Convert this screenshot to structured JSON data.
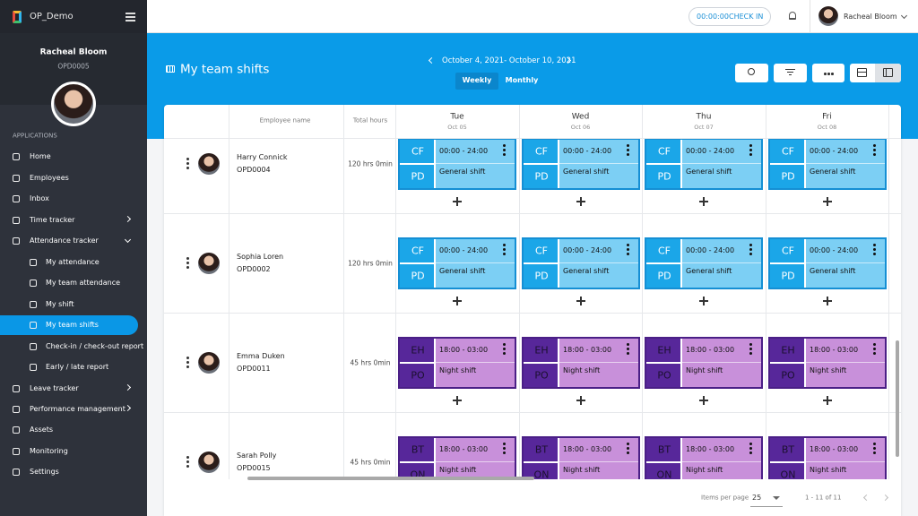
{
  "app": {
    "name": "OP_Demo"
  },
  "profile": {
    "name": "Racheal Bloom",
    "id": "OPD0005"
  },
  "sidebar": {
    "section": "APPLICATIONS",
    "items": [
      {
        "label": "Home"
      },
      {
        "label": "Employees"
      },
      {
        "label": "Inbox"
      },
      {
        "label": "Time tracker"
      },
      {
        "label": "Attendance tracker"
      },
      {
        "label": "My attendance"
      },
      {
        "label": "My team attendance"
      },
      {
        "label": "My shift"
      },
      {
        "label": "My team shifts"
      },
      {
        "label": "Check-in / check-out report"
      },
      {
        "label": "Early / late report"
      },
      {
        "label": "Leave tracker"
      },
      {
        "label": "Performance management"
      },
      {
        "label": "Assets"
      },
      {
        "label": "Monitoring"
      },
      {
        "label": "Settings"
      }
    ]
  },
  "topbar": {
    "timer": "00:00:00",
    "check_in": "CHECK IN",
    "user": "Racheal Bloom"
  },
  "header": {
    "title": "My team shifts",
    "date_range": "October 4, 2021- October 10, 2021",
    "tabs": [
      "Weekly",
      "Monthly"
    ]
  },
  "table": {
    "columns": {
      "employee": "Employee name",
      "total": "Total hours",
      "days": [
        {
          "day": "Tue",
          "date": "Oct 05"
        },
        {
          "day": "Wed",
          "date": "Oct 06"
        },
        {
          "day": "Thu",
          "date": "Oct 07"
        },
        {
          "day": "Fri",
          "date": "Oct 08"
        }
      ]
    },
    "rows": [
      {
        "name": "Harry Connick",
        "id": "OPD0004",
        "hours": "120 hrs 0min",
        "card_color": "#7ccff4",
        "code_color": "#1ba6e8",
        "border_color": "#158fd4",
        "code_text_color": "#ffffff",
        "shifts": [
          {
            "code": "CF",
            "code2": "PD",
            "time": "00:00 - 24:00",
            "label": "General shift"
          },
          {
            "code": "CF",
            "code2": "PD",
            "time": "00:00 - 24:00",
            "label": "General shift"
          },
          {
            "code": "CF",
            "code2": "PD",
            "time": "00:00 - 24:00",
            "label": "General shift"
          },
          {
            "code": "CF",
            "code2": "PD",
            "time": "00:00 - 24:00",
            "label": "General shift"
          }
        ]
      },
      {
        "name": "Sophia Loren",
        "id": "OPD0002",
        "hours": "120 hrs 0min",
        "card_color": "#7ccff4",
        "code_color": "#1ba6e8",
        "border_color": "#158fd4",
        "code_text_color": "#ffffff",
        "shifts": [
          {
            "code": "CF",
            "code2": "PD",
            "time": "00:00 - 24:00",
            "label": "General shift"
          },
          {
            "code": "CF",
            "code2": "PD",
            "time": "00:00 - 24:00",
            "label": "General shift"
          },
          {
            "code": "CF",
            "code2": "PD",
            "time": "00:00 - 24:00",
            "label": "General shift"
          },
          {
            "code": "CF",
            "code2": "PD",
            "time": "00:00 - 24:00",
            "label": "General shift"
          }
        ]
      },
      {
        "name": "Emma Duken",
        "id": "OPD0011",
        "hours": "45 hrs 0min",
        "card_color": "#c890da",
        "code_color": "#57279a",
        "border_color": "#4a1f86",
        "code_text_color": "#1c1030",
        "shifts": [
          {
            "code": "EH",
            "code2": "PO",
            "time": "18:00 - 03:00",
            "label": "Night shift"
          },
          {
            "code": "EH",
            "code2": "PO",
            "time": "18:00 - 03:00",
            "label": "Night shift"
          },
          {
            "code": "EH",
            "code2": "PO",
            "time": "18:00 - 03:00",
            "label": "Night shift"
          },
          {
            "code": "EH",
            "code2": "PO",
            "time": "18:00 - 03:00",
            "label": "Night shift"
          }
        ]
      },
      {
        "name": "Sarah Polly",
        "id": "OPD0015",
        "hours": "45 hrs 0min",
        "card_color": "#c890da",
        "code_color": "#57279a",
        "border_color": "#4a1f86",
        "code_text_color": "#1c1030",
        "shifts": [
          {
            "code": "BT",
            "code2": "ON",
            "time": "18:00 - 03:00",
            "label": "Night shift"
          },
          {
            "code": "BT",
            "code2": "ON",
            "time": "18:00 - 03:00",
            "label": "Night shift"
          },
          {
            "code": "BT",
            "code2": "ON",
            "time": "18:00 - 03:00",
            "label": "Night shift"
          },
          {
            "code": "BT",
            "code2": "ON",
            "time": "18:00 - 03:00",
            "label": "Night shift"
          }
        ]
      }
    ]
  },
  "footer": {
    "items_per_page": "Items per page",
    "page_size": "25",
    "range": "1 - 11 of 11"
  }
}
